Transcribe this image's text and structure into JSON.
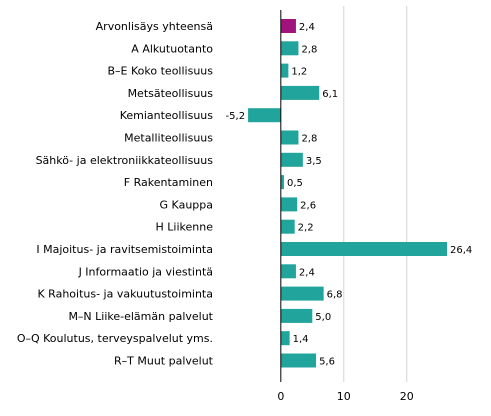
{
  "chart_data": {
    "type": "bar",
    "orientation": "horizontal",
    "categories": [
      "Arvonlisäys yhteensä",
      "A Alkutuotanto",
      "B–E Koko teollisuus",
      "Metsäteollisuus",
      "Kemianteollisuus",
      "Metalliteollisuus",
      "Sähkö- ja elektroniikkateollisuus",
      "F Rakentaminen",
      "G Kauppa",
      "H Liikenne",
      "I Majoitus- ja ravitsemistoiminta",
      "J Informaatio ja viestintä",
      "K Rahoitus- ja vakuutustoiminta",
      "M–N Liike-elämän palvelut",
      "O–Q Koulutus, terveyspalvelut yms.",
      "R–T Muut palvelut"
    ],
    "values": [
      2.4,
      2.8,
      1.2,
      6.1,
      -5.2,
      2.8,
      3.5,
      0.5,
      2.6,
      2.2,
      26.4,
      2.4,
      6.8,
      5.0,
      1.4,
      5.6
    ],
    "value_labels": [
      "2,4",
      "2,8",
      "1,2",
      "6,1",
      "-5,2",
      "2,8",
      "3,5",
      "0,5",
      "2,6",
      "2,2",
      "26,4",
      "2,4",
      "6,8",
      "5,0",
      "1,4",
      "5,6"
    ],
    "xticks": [
      0,
      10,
      20
    ],
    "xtick_labels": [
      "0",
      "10",
      "20"
    ],
    "xlim": [
      -9.5,
      31
    ],
    "highlight_index": 0,
    "colors": {
      "highlight": "#a0127c",
      "bar": "#21a49b",
      "grid": "#d4d4d4",
      "zero_line": "#000000"
    },
    "grid": true,
    "title": "",
    "xlabel": "",
    "ylabel": ""
  }
}
